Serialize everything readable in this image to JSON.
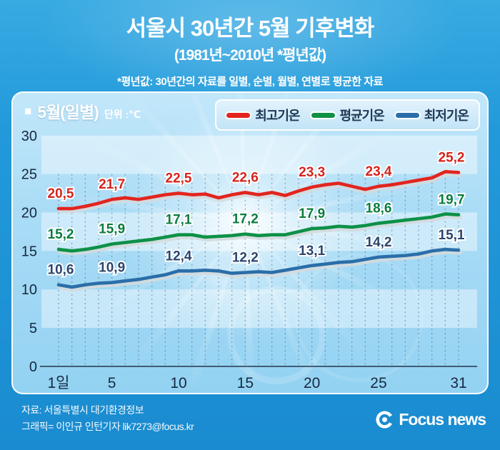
{
  "header": {
    "title": "서울시 30년간 5월 기후변화",
    "subtitle": "(1981년~2010년 *평년값)",
    "note": "*평년값: 30년간의 자료를 일별, 순별, 월별, 연별로 평균한 자료"
  },
  "panel": {
    "series_label": "5월(일별)",
    "unit_label": "단위 :℃",
    "bullet": "■"
  },
  "legend": [
    {
      "key": "max",
      "name": "최고기온",
      "color": "#e2251f"
    },
    {
      "key": "avg",
      "name": "평균기온",
      "color": "#0d9147"
    },
    {
      "key": "min",
      "name": "최저기온",
      "color": "#2a6ea9"
    }
  ],
  "chart_data": {
    "type": "line",
    "title": "서울시 30년간 5월 기후변화 (1981년~2010년 평년값)",
    "unit": "℃",
    "x": [
      1,
      2,
      3,
      4,
      5,
      6,
      7,
      8,
      9,
      10,
      11,
      12,
      13,
      14,
      15,
      16,
      17,
      18,
      19,
      20,
      21,
      22,
      23,
      24,
      25,
      26,
      27,
      28,
      29,
      30,
      31
    ],
    "x_tick_days": [
      1,
      5,
      10,
      15,
      20,
      25,
      31
    ],
    "x_tick_labels": [
      "1일",
      "5",
      "10",
      "15",
      "20",
      "25",
      "31"
    ],
    "ylim": [
      0,
      30
    ],
    "y_ticks": [
      30,
      25,
      20,
      15,
      10,
      5,
      0
    ],
    "grid": "vertical-dashed",
    "light_bands": [
      [
        25,
        30
      ],
      [
        15,
        20
      ],
      [
        5,
        10
      ]
    ],
    "legend_position": "top-right",
    "series": [
      {
        "key": "max",
        "name": "최고기온",
        "color": "#e2251f",
        "label_color": "#d6231c",
        "values": [
          20.5,
          20.5,
          20.8,
          21.2,
          21.7,
          21.9,
          21.7,
          22.0,
          22.3,
          22.5,
          22.3,
          22.4,
          21.9,
          22.3,
          22.6,
          22.3,
          22.6,
          22.2,
          22.8,
          23.3,
          23.6,
          23.8,
          23.4,
          23.0,
          23.4,
          23.6,
          23.9,
          24.2,
          24.5,
          25.3,
          25.2
        ],
        "point_labels": [
          {
            "day": 1,
            "text": "20,5"
          },
          {
            "day": 5,
            "text": "21,7"
          },
          {
            "day": 10,
            "text": "22,5"
          },
          {
            "day": 15,
            "text": "22,6"
          },
          {
            "day": 20,
            "text": "23,3"
          },
          {
            "day": 25,
            "text": "23,4"
          },
          {
            "day": 31,
            "text": "25,2"
          }
        ]
      },
      {
        "key": "avg",
        "name": "평균기온",
        "color": "#0d9147",
        "label_color": "#0a7c3f",
        "values": [
          15.2,
          15.0,
          15.2,
          15.5,
          15.9,
          16.1,
          16.3,
          16.5,
          16.8,
          17.1,
          17.1,
          16.8,
          16.9,
          17.0,
          17.2,
          17.0,
          17.1,
          17.1,
          17.5,
          17.9,
          18.0,
          18.2,
          18.1,
          18.3,
          18.6,
          18.8,
          19.0,
          19.2,
          19.4,
          19.8,
          19.7
        ],
        "point_labels": [
          {
            "day": 1,
            "text": "15,2"
          },
          {
            "day": 5,
            "text": "15,9"
          },
          {
            "day": 10,
            "text": "17,1"
          },
          {
            "day": 15,
            "text": "17,2"
          },
          {
            "day": 20,
            "text": "17,9"
          },
          {
            "day": 25,
            "text": "18,6"
          },
          {
            "day": 31,
            "text": "19,7"
          }
        ]
      },
      {
        "key": "min",
        "name": "최저기온",
        "color": "#2a6ea9",
        "label_color": "#2c456e",
        "values": [
          10.6,
          10.3,
          10.6,
          10.8,
          10.9,
          11.1,
          11.3,
          11.6,
          11.9,
          12.4,
          12.4,
          12.5,
          12.4,
          12.1,
          12.2,
          12.3,
          12.2,
          12.5,
          12.8,
          13.1,
          13.3,
          13.5,
          13.6,
          13.9,
          14.2,
          14.3,
          14.4,
          14.6,
          15.0,
          15.2,
          15.1
        ],
        "point_labels": [
          {
            "day": 1,
            "text": "10,6"
          },
          {
            "day": 5,
            "text": "10,9"
          },
          {
            "day": 10,
            "text": "12,4"
          },
          {
            "day": 15,
            "text": "12,2"
          },
          {
            "day": 20,
            "text": "13,1"
          },
          {
            "day": 25,
            "text": "14,2"
          },
          {
            "day": 31,
            "text": "15,1"
          }
        ]
      }
    ]
  },
  "footer": {
    "source": "자료: 서울특별시 대기환경정보",
    "credit": "그래픽= 이인규 인턴기자 lik7273@focus.kr",
    "logo_text": "Focus news"
  }
}
